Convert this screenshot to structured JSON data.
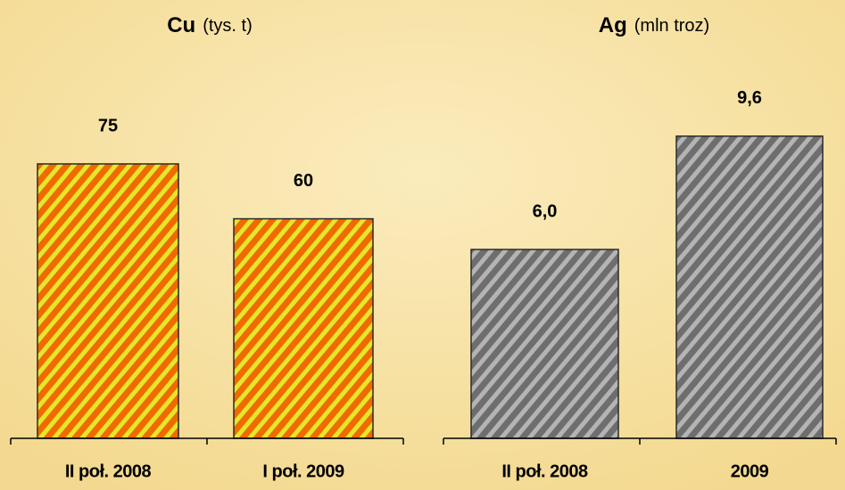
{
  "chart_data": [
    {
      "type": "bar",
      "title": "Cu",
      "unit": "(tys. t)",
      "categories": [
        "II poł. 2008",
        "I poł. 2009"
      ],
      "values": [
        75,
        60
      ],
      "color": "#f06a00",
      "stripe_color": "#e6e62a"
    },
    {
      "type": "bar",
      "title": "Ag",
      "unit": "(mln troz)",
      "categories": [
        "II poł. 2008",
        "2009"
      ],
      "values": [
        6.0,
        9.6
      ],
      "value_labels": [
        "6,0",
        "9,6"
      ],
      "color": "#6e6e6e",
      "stripe_color": "#b4b4b4"
    }
  ]
}
